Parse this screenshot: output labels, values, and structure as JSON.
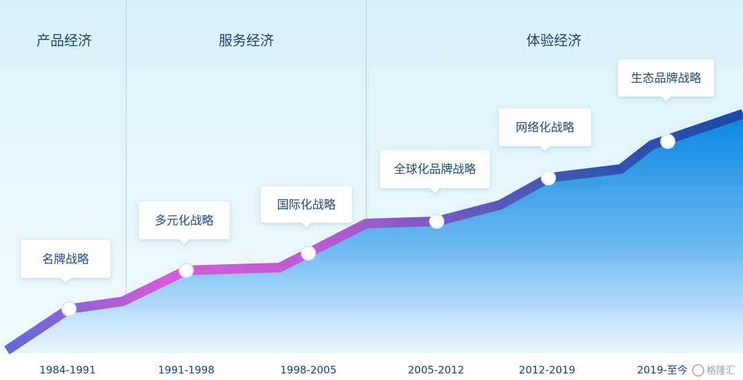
{
  "eras": [
    "产品经济",
    "服务经济",
    "体验经济"
  ],
  "stages": [
    {
      "label": "名牌战略",
      "period": "1984-1991"
    },
    {
      "label": "多元化战略",
      "period": "1991-1998"
    },
    {
      "label": "国际化战略",
      "period": "1998-2005"
    },
    {
      "label": "全球化品牌战略",
      "period": "2005-2012"
    },
    {
      "label": "网络化战略",
      "period": "2012-2019"
    },
    {
      "label": "生态品牌战略",
      "period": "2019-至今"
    }
  ],
  "watermark": "格隆汇"
}
